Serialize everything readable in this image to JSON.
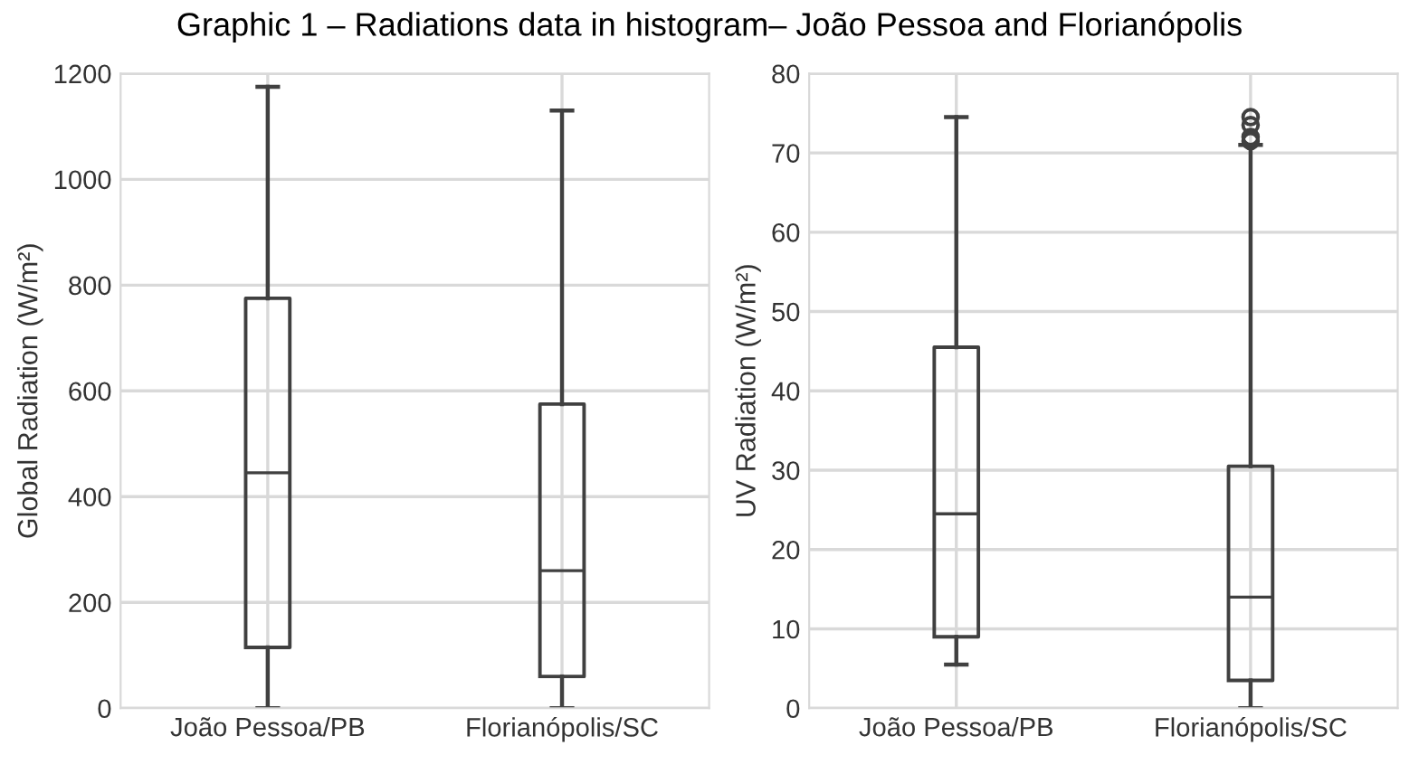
{
  "chart_data": [
    {
      "type": "box",
      "title": "Graphic 1 – Radiations data in histogram– João Pessoa and Florianópolis",
      "ylabel": "Global Radiation (W/m²)",
      "categories": [
        "João Pessoa/PB",
        "Florianópolis/SC"
      ],
      "ylim": [
        0,
        1200
      ],
      "yticks": [
        0,
        200,
        400,
        600,
        800,
        1000,
        1200
      ],
      "grid": true,
      "color": "#404040",
      "boxes": [
        {
          "low": 0,
          "q1": 115,
          "median": 445,
          "q3": 775,
          "high": 1175
        },
        {
          "low": 0,
          "q1": 60,
          "median": 260,
          "q3": 575,
          "high": 1130
        }
      ]
    },
    {
      "type": "box",
      "ylabel": "UV Radiation (W/m²)",
      "categories": [
        "João Pessoa/PB",
        "Florianópolis/SC"
      ],
      "ylim": [
        0,
        80
      ],
      "yticks": [
        0,
        10,
        20,
        30,
        40,
        50,
        60,
        70,
        80
      ],
      "grid": true,
      "color": "#404040",
      "boxes": [
        {
          "low": 5.5,
          "q1": 9,
          "median": 24.5,
          "q3": 45.5,
          "high": 74.5
        },
        {
          "low": 0,
          "q1": 3.5,
          "median": 14,
          "q3": 30.5,
          "high": 71,
          "outliers": [
            71.5,
            72,
            73.5,
            74.5
          ]
        }
      ]
    }
  ]
}
